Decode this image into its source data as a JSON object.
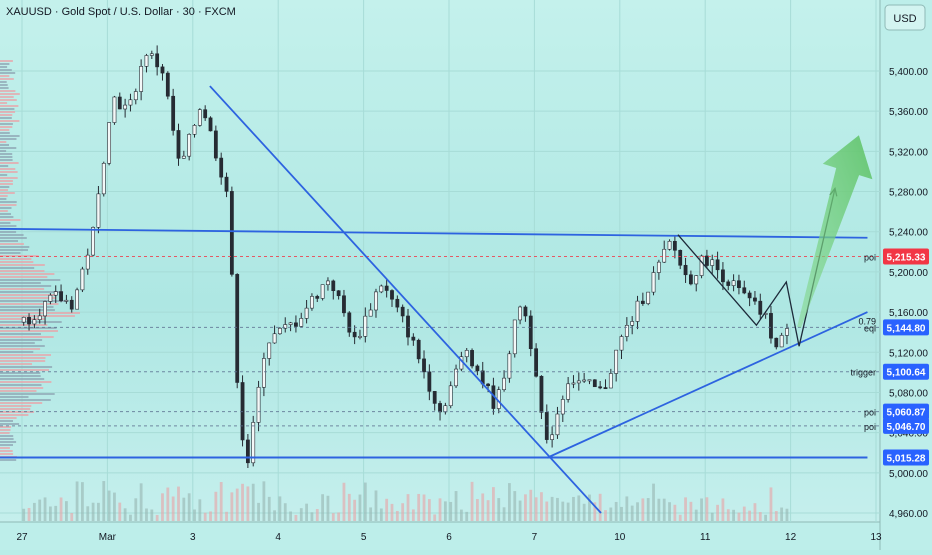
{
  "header": {
    "title": "XAUUSD · Gold Spot / U.S. Dollar · 30 · FXCM"
  },
  "currency_button": {
    "label": "USD"
  },
  "colors": {
    "up": "#26a69a",
    "down": "#ef5350",
    "candle": "#262b33",
    "trendline": "#2d63e0",
    "guide": "#5b6f8f",
    "arrow": "#7fd08a",
    "label_blue": "#2962ff",
    "label_red": "#f23645"
  },
  "chart_data": {
    "type": "candlestick",
    "title": "XAUUSD · Gold Spot / U.S. Dollar · 30 · FXCM",
    "x_ticks": [
      "27",
      "Mar",
      "3",
      "4",
      "5",
      "6",
      "7",
      "10",
      "11",
      "12",
      "13"
    ],
    "y_ticks": [
      "5,400.00",
      "5,360.00",
      "5,320.00",
      "5,280.00",
      "5,240.00",
      "5,200.00",
      "5,160.00",
      "5,120.00",
      "5,080.00",
      "5,040.00",
      "5,000.00",
      "4,960.00"
    ],
    "y_tick_values": [
      5400,
      5360,
      5320,
      5280,
      5240,
      5200,
      5160,
      5120,
      5080,
      5040,
      5000,
      4960
    ],
    "ylim": [
      4955,
      5445
    ],
    "grid": true,
    "price_labels": [
      {
        "value": 5215.33,
        "text": "5,215.33",
        "tag": "poi",
        "style": "red"
      },
      {
        "value": 5144.8,
        "text": "5,144.80",
        "tag": "eql",
        "tag2": "0.79",
        "style": "blue"
      },
      {
        "value": 5100.64,
        "text": "5,100.64",
        "tag": "trigger",
        "style": "blue"
      },
      {
        "value": 5060.87,
        "text": "5,060.87",
        "tag": "poi",
        "style": "blue"
      },
      {
        "value": 5046.7,
        "text": "5,046.70",
        "tag": "poi",
        "style": "blue"
      },
      {
        "value": 5015.28,
        "text": "5,015.28",
        "tag": "",
        "style": "blue"
      }
    ],
    "path_keypoints": [
      {
        "day": 0.0,
        "price": 5150
      },
      {
        "day": 0.4,
        "price": 5175
      },
      {
        "day": 0.6,
        "price": 5168
      },
      {
        "day": 0.85,
        "price": 5245
      },
      {
        "day": 1.05,
        "price": 5375
      },
      {
        "day": 1.25,
        "price": 5360
      },
      {
        "day": 1.45,
        "price": 5420
      },
      {
        "day": 1.65,
        "price": 5400
      },
      {
        "day": 1.85,
        "price": 5300
      },
      {
        "day": 2.1,
        "price": 5370
      },
      {
        "day": 2.4,
        "price": 5280
      },
      {
        "day": 2.55,
        "price": 5050
      },
      {
        "day": 2.65,
        "price": 5010
      },
      {
        "day": 2.85,
        "price": 5130
      },
      {
        "day": 3.2,
        "price": 5150
      },
      {
        "day": 3.6,
        "price": 5195
      },
      {
        "day": 3.9,
        "price": 5130
      },
      {
        "day": 4.2,
        "price": 5190
      },
      {
        "day": 4.5,
        "price": 5145
      },
      {
        "day": 4.9,
        "price": 5060
      },
      {
        "day": 5.2,
        "price": 5125
      },
      {
        "day": 5.55,
        "price": 5065
      },
      {
        "day": 5.85,
        "price": 5175
      },
      {
        "day": 6.05,
        "price": 5090
      },
      {
        "day": 6.12,
        "price": 5020
      },
      {
        "day": 6.4,
        "price": 5095
      },
      {
        "day": 6.8,
        "price": 5080
      },
      {
        "day": 7.0,
        "price": 5130
      },
      {
        "day": 7.3,
        "price": 5180
      },
      {
        "day": 7.6,
        "price": 5230
      },
      {
        "day": 7.8,
        "price": 5190
      },
      {
        "day": 8.0,
        "price": 5215
      },
      {
        "day": 8.4,
        "price": 5180
      },
      {
        "day": 8.7,
        "price": 5155
      },
      {
        "day": 8.85,
        "price": 5120
      },
      {
        "day": 9.0,
        "price": 5160
      }
    ],
    "drawings": {
      "resistance_line": [
        {
          "day": -0.35,
          "price": 5243
        },
        {
          "day": 9.9,
          "price": 5234
        }
      ],
      "support_line": [
        {
          "day": -0.35,
          "price": 5015.28
        },
        {
          "day": 9.9,
          "price": 5015.28
        }
      ],
      "descending_line": [
        {
          "day": 2.2,
          "price": 5385
        },
        {
          "day": 6.78,
          "price": 4960
        }
      ],
      "ascending_line": [
        {
          "day": 6.15,
          "price": 5015
        },
        {
          "day": 9.9,
          "price": 5160
        }
      ],
      "zigzag": [
        {
          "day": 7.68,
          "price": 5237
        },
        {
          "day": 8.6,
          "price": 5147
        },
        {
          "day": 8.95,
          "price": 5190
        },
        {
          "day": 9.1,
          "price": 5126
        },
        {
          "day": 9.52,
          "price": 5283
        }
      ],
      "projection_arrow": [
        {
          "day": 9.1,
          "price": 5145
        },
        {
          "day": 9.8,
          "price": 5336
        }
      ]
    }
  }
}
